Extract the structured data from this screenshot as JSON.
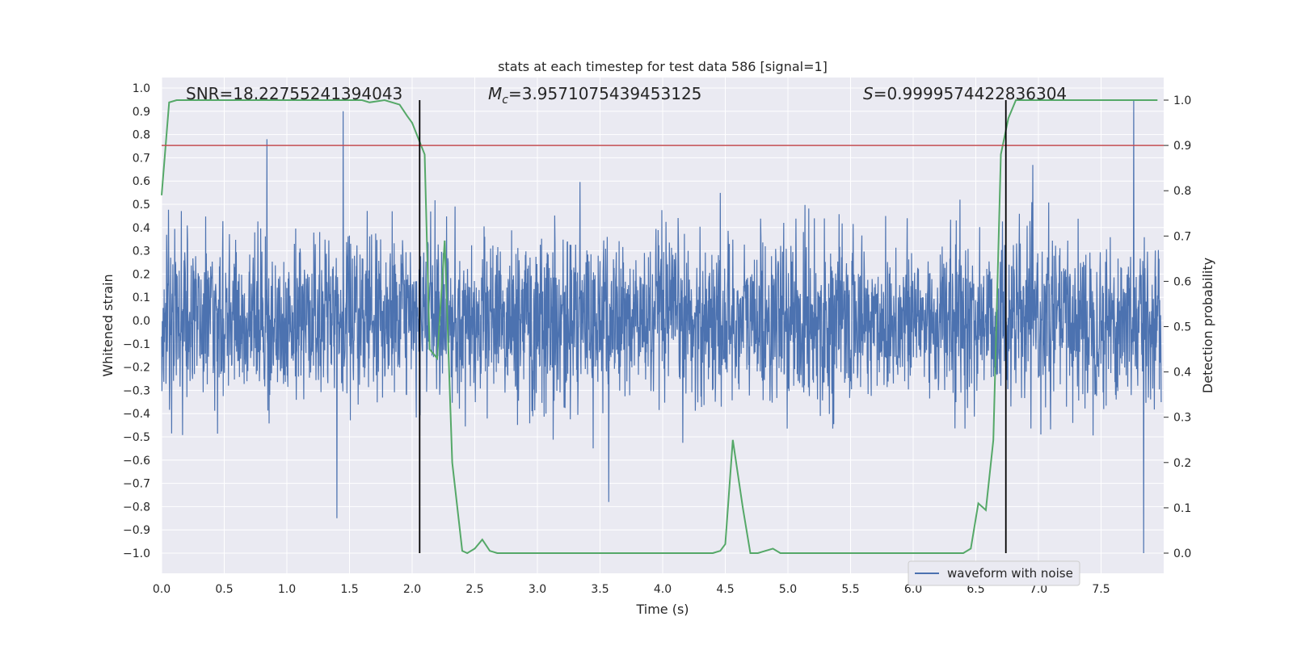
{
  "chart_data": {
    "type": "line",
    "title": "stats at each timestep for test data 586 [signal=1]",
    "xlabel": "Time (s)",
    "ylabel_left": "Whitened strain",
    "ylabel_right": "Detection probability",
    "xlim": [
      0,
      8.0
    ],
    "ylim_left": [
      -1.1,
      1.05
    ],
    "ylim_right": [
      -0.05,
      1.03
    ],
    "x_ticks": [
      "0.0",
      "0.5",
      "1.0",
      "1.5",
      "2.0",
      "2.5",
      "3.0",
      "3.5",
      "4.0",
      "4.5",
      "5.0",
      "5.5",
      "6.0",
      "6.5",
      "7.0",
      "7.5"
    ],
    "y_left_ticks": [
      "1.0",
      "0.9",
      "0.8",
      "0.7",
      "0.6",
      "0.5",
      "0.4",
      "0.3",
      "0.2",
      "0.1",
      "0.0",
      "-0.1",
      "-0.2",
      "-0.3",
      "-0.4",
      "-0.5",
      "-0.6",
      "-0.7",
      "-0.8",
      "-0.9",
      "-1.0"
    ],
    "y_right_ticks": [
      "1.0",
      "0.9",
      "0.8",
      "0.7",
      "0.6",
      "0.5",
      "0.4",
      "0.3",
      "0.2",
      "0.1",
      "0.0"
    ],
    "annotations": {
      "snr": "SNR=18.22755241394043",
      "mc_symbol": "M",
      "mc_sub": "c",
      "mc_value": "=3.9571075439453125",
      "s_symbol": "S",
      "s_value": "=0.9999574422836304"
    },
    "vlines_x": [
      2.06,
      6.74
    ],
    "threshold": 0.9,
    "legend": [
      "waveform with noise"
    ],
    "legend_position": "lower right",
    "grid": true,
    "colors": {
      "background": "#eaeaf2",
      "waveform": "#4c72b0",
      "probability": "#55a868",
      "threshold": "#c44e52",
      "vline": "#000000"
    },
    "waveform_envelope": {
      "description_values": "approximate noise envelope of whitened strain (data units)",
      "typical_amplitude": 0.35,
      "spikes": [
        {
          "x": 1.45,
          "y": 0.9
        },
        {
          "x": 0.84,
          "y": 0.78
        },
        {
          "x": 7.76,
          "y": 0.95
        },
        {
          "x": 7.84,
          "y": -1.0
        },
        {
          "x": 1.4,
          "y": -0.85
        },
        {
          "x": 3.57,
          "y": -0.78
        }
      ]
    },
    "series": [
      {
        "name": "",
        "axis": "right",
        "x": [
          0.0,
          0.06,
          0.12,
          0.5,
          1.0,
          1.5,
          1.6,
          1.66,
          1.78,
          1.9,
          1.96,
          2.0,
          2.1,
          2.14,
          2.2,
          2.26,
          2.32,
          2.4,
          2.44,
          2.5,
          2.56,
          2.62,
          2.68,
          2.74,
          2.82,
          3.0,
          3.5,
          4.0,
          4.06,
          4.12,
          4.3,
          4.4,
          4.46,
          4.5,
          4.56,
          4.64,
          4.7,
          4.76,
          4.82,
          4.88,
          4.94,
          5.0,
          5.5,
          6.0,
          6.4,
          6.46,
          6.52,
          6.58,
          6.64,
          6.7,
          6.76,
          6.82,
          6.9,
          7.0,
          7.5,
          7.95
        ],
        "y": [
          0.79,
          0.995,
          1.0,
          1.0,
          1.0,
          1.0,
          1.0,
          0.995,
          1.0,
          0.99,
          0.965,
          0.95,
          0.88,
          0.45,
          0.43,
          0.69,
          0.2,
          0.005,
          0.0,
          0.01,
          0.03,
          0.005,
          0.0,
          0.0,
          0.0,
          0.0,
          0.0,
          0.0,
          0.0,
          0.0,
          0.0,
          0.0,
          0.005,
          0.02,
          0.25,
          0.1,
          0.0,
          0.0,
          0.005,
          0.01,
          0.0,
          0.0,
          0.0,
          0.0,
          0.0,
          0.01,
          0.11,
          0.095,
          0.25,
          0.88,
          0.96,
          1.0,
          1.0,
          1.0,
          1.0,
          1.0
        ]
      }
    ]
  }
}
